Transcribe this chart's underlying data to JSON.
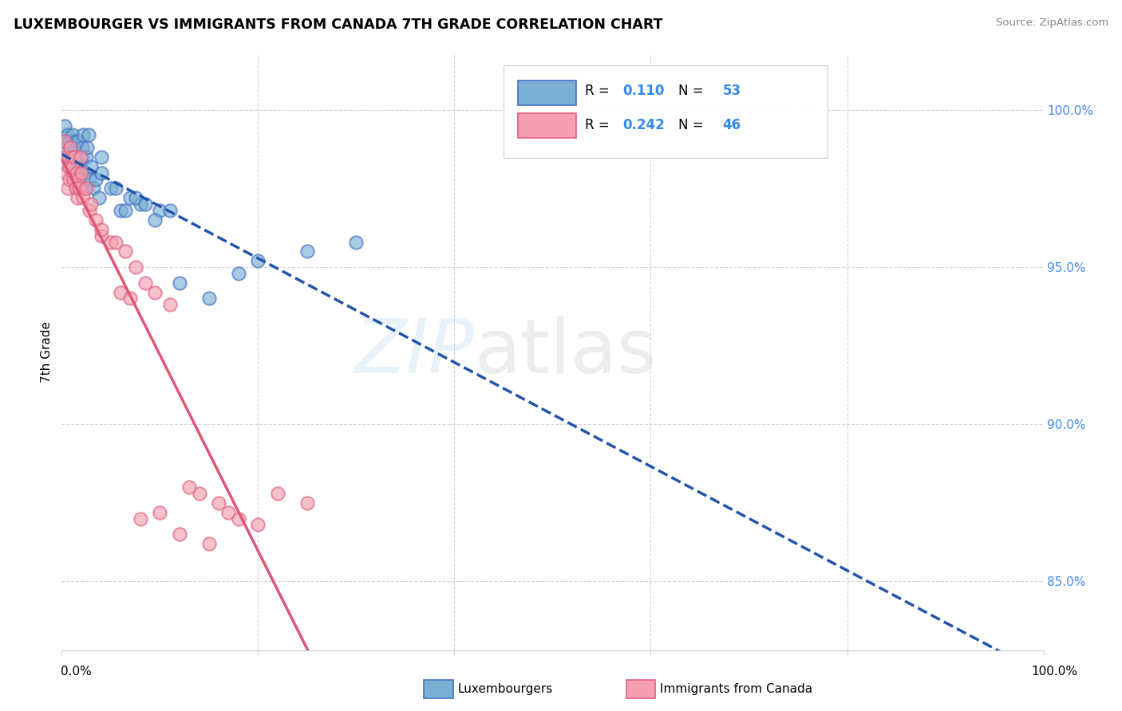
{
  "title": "LUXEMBOURGER VS IMMIGRANTS FROM CANADA 7TH GRADE CORRELATION CHART",
  "source": "Source: ZipAtlas.com",
  "ylabel": "7th Grade",
  "r_blue": 0.11,
  "n_blue": 53,
  "r_pink": 0.242,
  "n_pink": 46,
  "blue_color": "#7BAFD4",
  "pink_color": "#F4A0B0",
  "blue_edge_color": "#4472C4",
  "pink_edge_color": "#E06080",
  "blue_line_color": "#2255AA",
  "pink_line_color": "#E05575",
  "ytick_labels": [
    "85.0%",
    "90.0%",
    "95.0%",
    "100.0%"
  ],
  "ytick_values": [
    0.85,
    0.9,
    0.95,
    1.0
  ],
  "ymin": 0.828,
  "ymax": 1.018,
  "blue_points_x": [
    0.003,
    0.004,
    0.005,
    0.006,
    0.007,
    0.008,
    0.008,
    0.009,
    0.01,
    0.01,
    0.011,
    0.012,
    0.013,
    0.013,
    0.014,
    0.015,
    0.015,
    0.016,
    0.017,
    0.018,
    0.019,
    0.02,
    0.021,
    0.022,
    0.023,
    0.024,
    0.025,
    0.026,
    0.027,
    0.028,
    0.03,
    0.032,
    0.035,
    0.038,
    0.04,
    0.05,
    0.06,
    0.07,
    0.08,
    0.1,
    0.12,
    0.15,
    0.18,
    0.2,
    0.25,
    0.3,
    0.04,
    0.055,
    0.065,
    0.075,
    0.085,
    0.095,
    0.11
  ],
  "blue_points_y": [
    0.995,
    0.99,
    0.988,
    0.992,
    0.985,
    0.99,
    0.982,
    0.988,
    0.985,
    0.98,
    0.992,
    0.988,
    0.985,
    0.978,
    0.99,
    0.982,
    0.975,
    0.985,
    0.99,
    0.978,
    0.982,
    0.985,
    0.988,
    0.992,
    0.975,
    0.98,
    0.985,
    0.988,
    0.992,
    0.978,
    0.982,
    0.975,
    0.978,
    0.972,
    0.98,
    0.975,
    0.968,
    0.972,
    0.97,
    0.968,
    0.945,
    0.94,
    0.948,
    0.952,
    0.955,
    0.958,
    0.985,
    0.975,
    0.968,
    0.972,
    0.97,
    0.965,
    0.968
  ],
  "pink_points_x": [
    0.003,
    0.004,
    0.005,
    0.006,
    0.007,
    0.008,
    0.009,
    0.01,
    0.011,
    0.012,
    0.013,
    0.014,
    0.015,
    0.016,
    0.017,
    0.018,
    0.019,
    0.02,
    0.022,
    0.025,
    0.028,
    0.03,
    0.035,
    0.04,
    0.05,
    0.06,
    0.07,
    0.08,
    0.1,
    0.12,
    0.14,
    0.15,
    0.16,
    0.18,
    0.2,
    0.25,
    0.04,
    0.055,
    0.065,
    0.075,
    0.085,
    0.095,
    0.11,
    0.13,
    0.17,
    0.22
  ],
  "pink_points_y": [
    0.99,
    0.985,
    0.98,
    0.975,
    0.982,
    0.978,
    0.988,
    0.985,
    0.982,
    0.978,
    0.985,
    0.975,
    0.98,
    0.972,
    0.978,
    0.975,
    0.985,
    0.98,
    0.972,
    0.975,
    0.968,
    0.97,
    0.965,
    0.96,
    0.958,
    0.942,
    0.94,
    0.87,
    0.872,
    0.865,
    0.878,
    0.862,
    0.875,
    0.87,
    0.868,
    0.875,
    0.962,
    0.958,
    0.955,
    0.95,
    0.945,
    0.942,
    0.938,
    0.88,
    0.872,
    0.878
  ]
}
